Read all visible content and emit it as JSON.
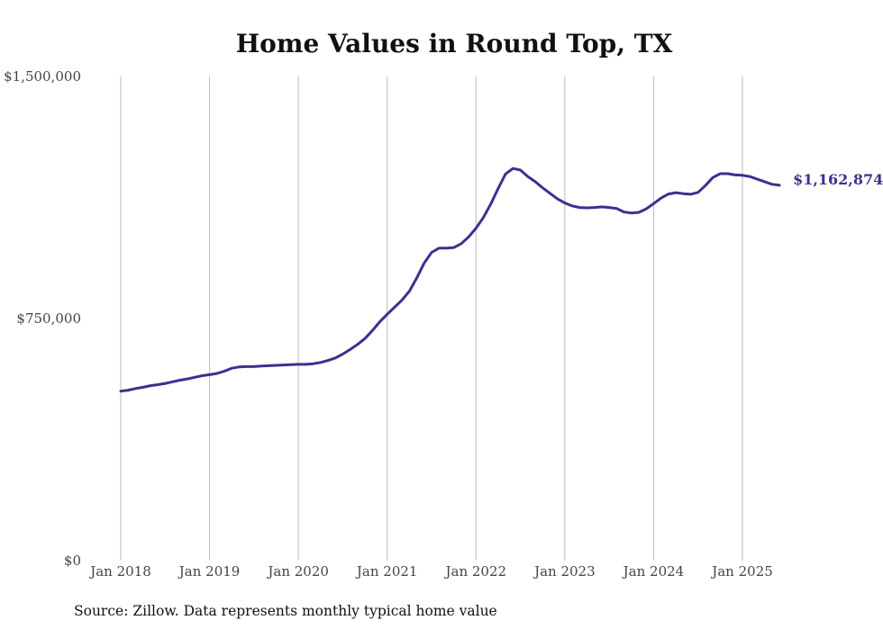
{
  "chart_data": {
    "type": "line",
    "title": "Home Values in Round Top, TX",
    "xlabel": "",
    "ylabel": "",
    "ylim": [
      0,
      1500000
    ],
    "y_ticks": [
      {
        "value": 0,
        "label": "$0"
      },
      {
        "value": 750000,
        "label": "$750,000"
      },
      {
        "value": 1500000,
        "label": "$1,500,000"
      }
    ],
    "x_ticks": [
      {
        "value": "2018-01",
        "label": "Jan 2018"
      },
      {
        "value": "2019-01",
        "label": "Jan 2019"
      },
      {
        "value": "2020-01",
        "label": "Jan 2020"
      },
      {
        "value": "2021-01",
        "label": "Jan 2021"
      },
      {
        "value": "2022-01",
        "label": "Jan 2022"
      },
      {
        "value": "2023-01",
        "label": "Jan 2023"
      },
      {
        "value": "2024-01",
        "label": "Jan 2024"
      },
      {
        "value": "2025-01",
        "label": "Jan 2025"
      }
    ],
    "xlim": [
      "2017-11",
      "2025-12"
    ],
    "grid": {
      "vertical": true,
      "horizontal": false
    },
    "series": [
      {
        "color": "#3b3190",
        "end_label": "$1,162,874",
        "points": [
          [
            "2018-01",
            525000
          ],
          [
            "2018-02",
            528000
          ],
          [
            "2018-03",
            533000
          ],
          [
            "2018-04",
            537000
          ],
          [
            "2018-05",
            542000
          ],
          [
            "2018-06",
            545000
          ],
          [
            "2018-07",
            549000
          ],
          [
            "2018-08",
            554000
          ],
          [
            "2018-09",
            559000
          ],
          [
            "2018-10",
            563000
          ],
          [
            "2018-11",
            568000
          ],
          [
            "2018-12",
            573000
          ],
          [
            "2019-01",
            576000
          ],
          [
            "2019-02",
            580000
          ],
          [
            "2019-03",
            587000
          ],
          [
            "2019-04",
            596000
          ],
          [
            "2019-05",
            600000
          ],
          [
            "2019-06",
            601000
          ],
          [
            "2019-07",
            601000
          ],
          [
            "2019-08",
            603000
          ],
          [
            "2019-09",
            604000
          ],
          [
            "2019-10",
            605000
          ],
          [
            "2019-11",
            606000
          ],
          [
            "2019-12",
            607000
          ],
          [
            "2020-01",
            608000
          ],
          [
            "2020-02",
            608000
          ],
          [
            "2020-03",
            610000
          ],
          [
            "2020-04",
            614000
          ],
          [
            "2020-05",
            620000
          ],
          [
            "2020-06",
            628000
          ],
          [
            "2020-07",
            640000
          ],
          [
            "2020-08",
            654000
          ],
          [
            "2020-09",
            670000
          ],
          [
            "2020-10",
            688000
          ],
          [
            "2020-11",
            713000
          ],
          [
            "2020-12",
            740000
          ],
          [
            "2021-01",
            763000
          ],
          [
            "2021-02",
            785000
          ],
          [
            "2021-03",
            807000
          ],
          [
            "2021-04",
            835000
          ],
          [
            "2021-05",
            876000
          ],
          [
            "2021-06",
            922000
          ],
          [
            "2021-07",
            955000
          ],
          [
            "2021-08",
            968000
          ],
          [
            "2021-09",
            968000
          ],
          [
            "2021-10",
            970000
          ],
          [
            "2021-11",
            982000
          ],
          [
            "2021-12",
            1003000
          ],
          [
            "2022-01",
            1030000
          ],
          [
            "2022-02",
            1063000
          ],
          [
            "2022-03",
            1105000
          ],
          [
            "2022-04",
            1153000
          ],
          [
            "2022-05",
            1198000
          ],
          [
            "2022-06",
            1215000
          ],
          [
            "2022-07",
            1210000
          ],
          [
            "2022-08",
            1190000
          ],
          [
            "2022-09",
            1174000
          ],
          [
            "2022-10",
            1155000
          ],
          [
            "2022-11",
            1138000
          ],
          [
            "2022-12",
            1121000
          ],
          [
            "2023-01",
            1108000
          ],
          [
            "2023-02",
            1099000
          ],
          [
            "2023-03",
            1094000
          ],
          [
            "2023-04",
            1093000
          ],
          [
            "2023-05",
            1094000
          ],
          [
            "2023-06",
            1096000
          ],
          [
            "2023-07",
            1094000
          ],
          [
            "2023-08",
            1091000
          ],
          [
            "2023-09",
            1080000
          ],
          [
            "2023-10",
            1077000
          ],
          [
            "2023-11",
            1079000
          ],
          [
            "2023-12",
            1090000
          ],
          [
            "2024-01",
            1106000
          ],
          [
            "2024-02",
            1123000
          ],
          [
            "2024-03",
            1136000
          ],
          [
            "2024-04",
            1140000
          ],
          [
            "2024-05",
            1137000
          ],
          [
            "2024-06",
            1135000
          ],
          [
            "2024-07",
            1141000
          ],
          [
            "2024-08",
            1162000
          ],
          [
            "2024-09",
            1187000
          ],
          [
            "2024-10",
            1199000
          ],
          [
            "2024-11",
            1199000
          ],
          [
            "2024-12",
            1195000
          ],
          [
            "2025-01",
            1194000
          ],
          [
            "2025-02",
            1190000
          ],
          [
            "2025-03",
            1182000
          ],
          [
            "2025-04",
            1174000
          ],
          [
            "2025-05",
            1166000
          ],
          [
            "2025-06",
            1162874
          ]
        ]
      }
    ]
  },
  "footer": {
    "source": "Source: Zillow. Data represents monthly typical home value"
  }
}
